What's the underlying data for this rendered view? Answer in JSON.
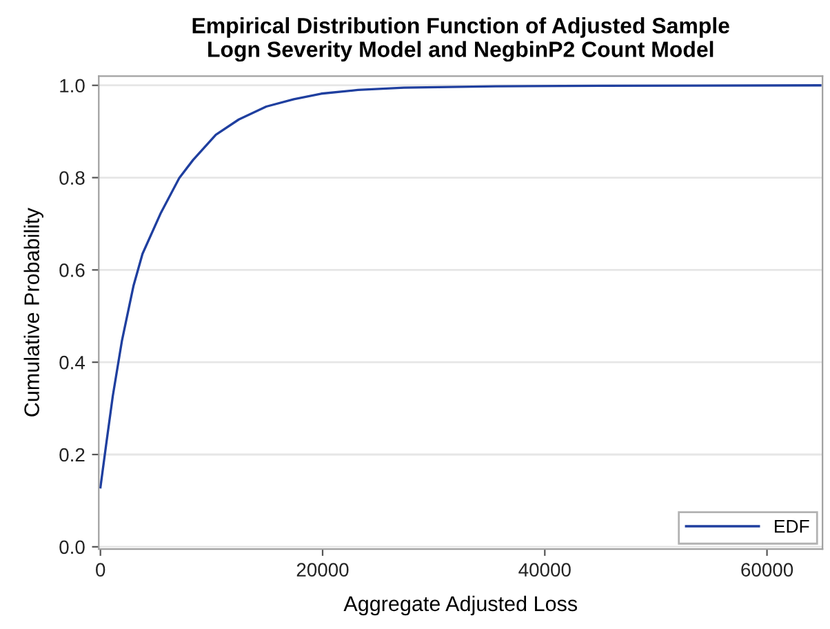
{
  "chart_data": {
    "type": "line",
    "title": "Empirical Distribution Function of Adjusted Sample\nLogn Severity Model and NegbinP2 Count Model",
    "xlabel": "Aggregate Adjusted Loss",
    "ylabel": "Cumulative Probability",
    "series": [
      {
        "name": "EDF",
        "color": "#1f3f9f",
        "x": [
          0,
          495,
          1114,
          1931,
          2970,
          3787,
          5446,
          7091,
          8329,
          10390,
          12454,
          14929,
          17405,
          19880,
          23180,
          27310,
          35560,
          45000,
          64800
        ],
        "values": [
          0.129,
          0.218,
          0.327,
          0.446,
          0.565,
          0.635,
          0.724,
          0.799,
          0.838,
          0.893,
          0.926,
          0.954,
          0.97,
          0.982,
          0.99,
          0.995,
          0.998,
          0.999,
          1.0
        ]
      }
    ],
    "xlim": [
      -150,
      65000
    ],
    "ylim": [
      -0.005,
      1.02
    ],
    "xticks": [
      0,
      20000,
      40000,
      60000
    ],
    "yticks": [
      {
        "value": 0,
        "label": "0.0"
      },
      {
        "value": 0.2,
        "label": "0.2"
      },
      {
        "value": 0.4,
        "label": "0.4"
      },
      {
        "value": 0.6,
        "label": "0.6"
      },
      {
        "value": 0.8,
        "label": "0.8"
      },
      {
        "value": 1,
        "label": "1.0"
      }
    ],
    "grid": "y",
    "legend": "bottom right",
    "marker": "none",
    "line_style": "solid"
  }
}
